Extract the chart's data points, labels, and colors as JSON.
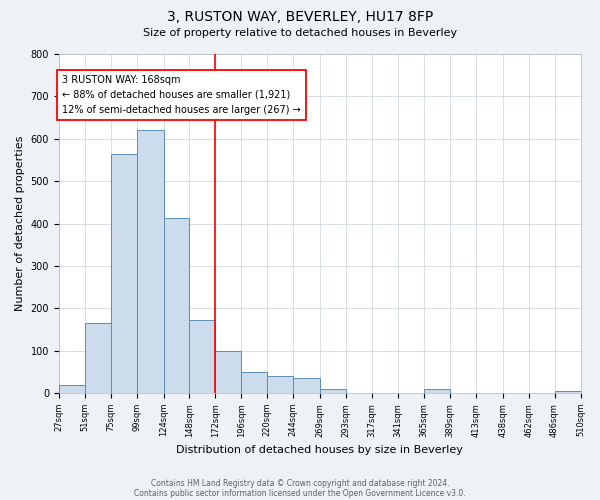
{
  "title": "3, RUSTON WAY, BEVERLEY, HU17 8FP",
  "subtitle": "Size of property relative to detached houses in Beverley",
  "xlabel": "Distribution of detached houses by size in Beverley",
  "ylabel": "Number of detached properties",
  "bar_edges": [
    27,
    51,
    75,
    99,
    124,
    148,
    172,
    196,
    220,
    244,
    269,
    293,
    317,
    341,
    365,
    389,
    413,
    438,
    462,
    486,
    510
  ],
  "bar_heights": [
    20,
    165,
    565,
    620,
    413,
    172,
    100,
    50,
    40,
    35,
    10,
    0,
    0,
    0,
    10,
    0,
    0,
    0,
    0,
    5
  ],
  "bar_color": "#ccdcec",
  "bar_edge_color": "#5b8db8",
  "vline_x": 172,
  "vline_color": "red",
  "annotation_text": "3 RUSTON WAY: 168sqm\n← 88% of detached houses are smaller (1,921)\n12% of semi-detached houses are larger (267) →",
  "annotation_box_color": "white",
  "annotation_box_edge_color": "red",
  "ylim": [
    0,
    800
  ],
  "yticks": [
    0,
    100,
    200,
    300,
    400,
    500,
    600,
    700,
    800
  ],
  "tick_labels": [
    "27sqm",
    "51sqm",
    "75sqm",
    "99sqm",
    "124sqm",
    "148sqm",
    "172sqm",
    "196sqm",
    "220sqm",
    "244sqm",
    "269sqm",
    "293sqm",
    "317sqm",
    "341sqm",
    "365sqm",
    "389sqm",
    "413sqm",
    "438sqm",
    "462sqm",
    "486sqm",
    "510sqm"
  ],
  "footnote1": "Contains HM Land Registry data © Crown copyright and database right 2024.",
  "footnote2": "Contains public sector information licensed under the Open Government Licence v3.0.",
  "bg_color": "#eef2f6",
  "plot_bg_color": "#ffffff",
  "grid_color": "#c8d0d8",
  "title_fontsize": 10,
  "subtitle_fontsize": 8,
  "ylabel_fontsize": 8,
  "xlabel_fontsize": 8,
  "tick_fontsize": 6,
  "annot_fontsize": 7,
  "footnote_fontsize": 5.5
}
